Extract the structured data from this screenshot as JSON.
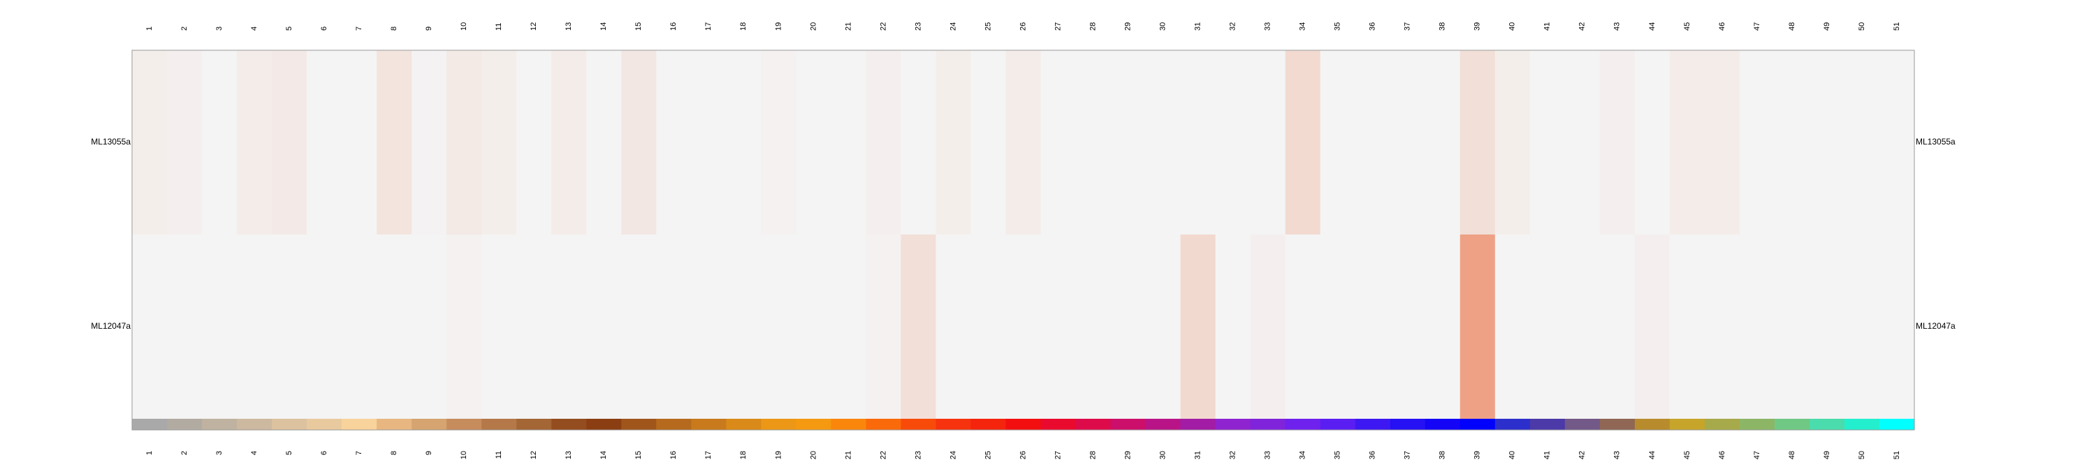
{
  "chart_data": {
    "type": "heatmap",
    "title": "",
    "xlabel": "",
    "ylabel": "",
    "columns": [
      "1",
      "2",
      "3",
      "4",
      "5",
      "6",
      "7",
      "8",
      "9",
      "10",
      "11",
      "12",
      "13",
      "14",
      "15",
      "16",
      "17",
      "18",
      "19",
      "20",
      "21",
      "22",
      "23",
      "24",
      "25",
      "26",
      "27",
      "28",
      "29",
      "30",
      "31",
      "32",
      "33",
      "34",
      "35",
      "36",
      "37",
      "38",
      "39",
      "40",
      "41",
      "42",
      "43",
      "44",
      "45",
      "46",
      "47",
      "48",
      "49",
      "50",
      "51"
    ],
    "rows": [
      "ML13055a",
      "ML12047a"
    ],
    "values": [
      [
        0.04,
        0.03,
        0.0,
        0.05,
        0.06,
        0.0,
        0.0,
        0.1,
        0.01,
        0.07,
        0.04,
        0.0,
        0.05,
        0.0,
        0.08,
        0.0,
        0.0,
        0.0,
        0.02,
        0.0,
        0.0,
        0.03,
        0.0,
        0.04,
        0.0,
        0.05,
        0.0,
        0.0,
        0.0,
        0.0,
        0.0,
        0.0,
        0.0,
        0.16,
        0.0,
        0.0,
        0.0,
        0.0,
        0.13,
        0.04,
        0.0,
        0.0,
        0.03,
        0.0,
        0.05,
        0.05,
        0.0,
        0.0,
        0.0,
        0.0,
        0.0
      ],
      [
        0.0,
        0.0,
        0.0,
        0.0,
        0.0,
        0.0,
        0.0,
        0.0,
        0.0,
        0.02,
        0.0,
        0.0,
        0.0,
        0.0,
        0.0,
        0.0,
        0.0,
        0.0,
        0.0,
        0.0,
        0.0,
        0.02,
        0.13,
        0.0,
        0.0,
        0.0,
        0.0,
        0.0,
        0.0,
        0.0,
        0.17,
        0.0,
        0.03,
        0.0,
        0.0,
        0.0,
        0.0,
        0.0,
        0.52,
        0.0,
        0.0,
        0.0,
        0.0,
        0.03,
        0.0,
        0.0,
        0.0,
        0.0,
        0.0,
        0.0,
        0.0
      ]
    ],
    "scale": [
      0,
      1
    ],
    "color_low": "#f4f4f4",
    "color_high": "#e8541c",
    "column_colors": [
      "#a9a9a9",
      "#b2aba2",
      "#bfb2a0",
      "#cdb9a0",
      "#dcc29f",
      "#e9ca9f",
      "#f9d39c",
      "#e8b781",
      "#d6a470",
      "#c78c5c",
      "#b57848",
      "#a36634",
      "#944d1f",
      "#8b3e12",
      "#a0561b",
      "#b66a1d",
      "#c97a1c",
      "#da8a18",
      "#ec9715",
      "#f59a10",
      "#fa870c",
      "#fb6a0a",
      "#f84b0a",
      "#f6330e",
      "#f4240d",
      "#f30f0f",
      "#ea0a2e",
      "#de0b4b",
      "#cc0f6a",
      "#b91487",
      "#a21ca6",
      "#8f23d0",
      "#8024dc",
      "#6f21ed",
      "#5b1ef2",
      "#3e18f2",
      "#2511f3",
      "#1405f6",
      "#0002fb",
      "#2c2fcc",
      "#4b3aa8",
      "#735987",
      "#906655",
      "#b88c2d",
      "#c6a52a",
      "#a7aa4a",
      "#8cb666",
      "#6fc985",
      "#4adcac",
      "#23efce",
      "#00ffff"
    ]
  }
}
